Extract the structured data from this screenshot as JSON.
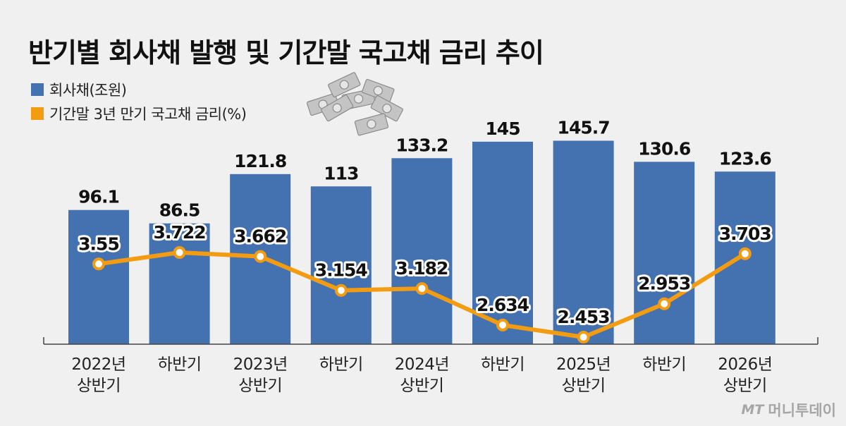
{
  "title": "반기별 회사채 발행 및 기간말 국고채 금리 추이",
  "legend": [
    {
      "label": "회사채(조원)",
      "color": "#4472b0"
    },
    {
      "label": "기간말 3년 만기 국고채 금리(%)",
      "color": "#f39c12"
    }
  ],
  "watermark": {
    "logo": "MT",
    "name": "머니투데이"
  },
  "chart_data": {
    "type": "bar",
    "categories": [
      [
        "2022년",
        "상반기"
      ],
      [
        "하반기"
      ],
      [
        "2023년",
        "상반기"
      ],
      [
        "하반기"
      ],
      [
        "2024년",
        "상반기"
      ],
      [
        "하반기"
      ],
      [
        "2025년",
        "상반기"
      ],
      [
        "하반기"
      ],
      [
        "2026년",
        "상반기"
      ]
    ],
    "series": [
      {
        "name": "회사채(조원)",
        "type": "bar",
        "color": "#4472b0",
        "values": [
          96.1,
          86.5,
          121.8,
          113,
          133.2,
          145,
          145.7,
          130.6,
          123.6
        ],
        "labels": [
          "96.1",
          "86.5",
          "121.8",
          "113",
          "133.2",
          "145",
          "145.7",
          "130.6",
          "123.6"
        ]
      },
      {
        "name": "기간말 3년 만기 국고채 금리(%)",
        "type": "line",
        "color": "#f39c12",
        "values": [
          3.55,
          3.722,
          3.662,
          3.154,
          3.182,
          2.634,
          2.453,
          2.953,
          3.703
        ],
        "labels": [
          "3.55",
          "3.722",
          "3.662",
          "3.154",
          "3.182",
          "2.634",
          "2.453",
          "2.953",
          "3.703"
        ]
      }
    ],
    "grid": false,
    "legend_position": "top-left"
  }
}
